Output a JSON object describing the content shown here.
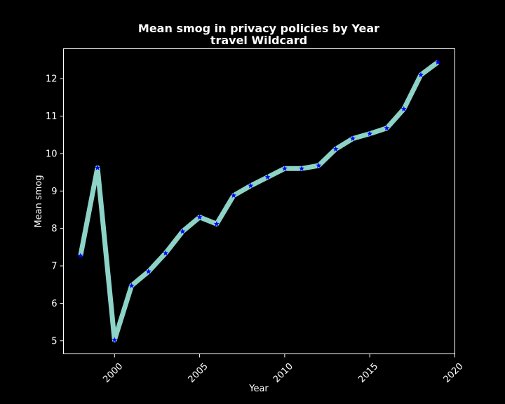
{
  "colors": {
    "background": "#000000",
    "line": "#8dd3c7",
    "marker": "#0000ff",
    "text": "#ffffff"
  },
  "chart_data": {
    "type": "line",
    "title_lines": [
      "Mean smog in privacy policies by Year",
      "travel Wildcard"
    ],
    "xlabel": "Year",
    "ylabel": "Mean smog",
    "xlim": [
      1997,
      2020
    ],
    "ylim": [
      4.65,
      12.8
    ],
    "xticks": [
      2000,
      2005,
      2010,
      2015,
      2020
    ],
    "yticks": [
      5,
      6,
      7,
      8,
      9,
      10,
      11,
      12
    ],
    "grid": false,
    "marker": "star",
    "series": [
      {
        "x": [
          1998,
          1999,
          2000,
          2001,
          2002,
          2003,
          2004,
          2005,
          2006,
          2007,
          2008,
          2009,
          2010,
          2011,
          2012,
          2013,
          2014,
          2015,
          2016,
          2017,
          2018,
          2019
        ],
        "y": [
          7.27,
          9.62,
          5.02,
          6.47,
          6.85,
          7.34,
          7.92,
          8.3,
          8.12,
          8.88,
          9.14,
          9.37,
          9.6,
          9.6,
          9.68,
          10.12,
          10.4,
          10.53,
          10.68,
          11.19,
          12.1,
          12.44
        ]
      }
    ]
  }
}
